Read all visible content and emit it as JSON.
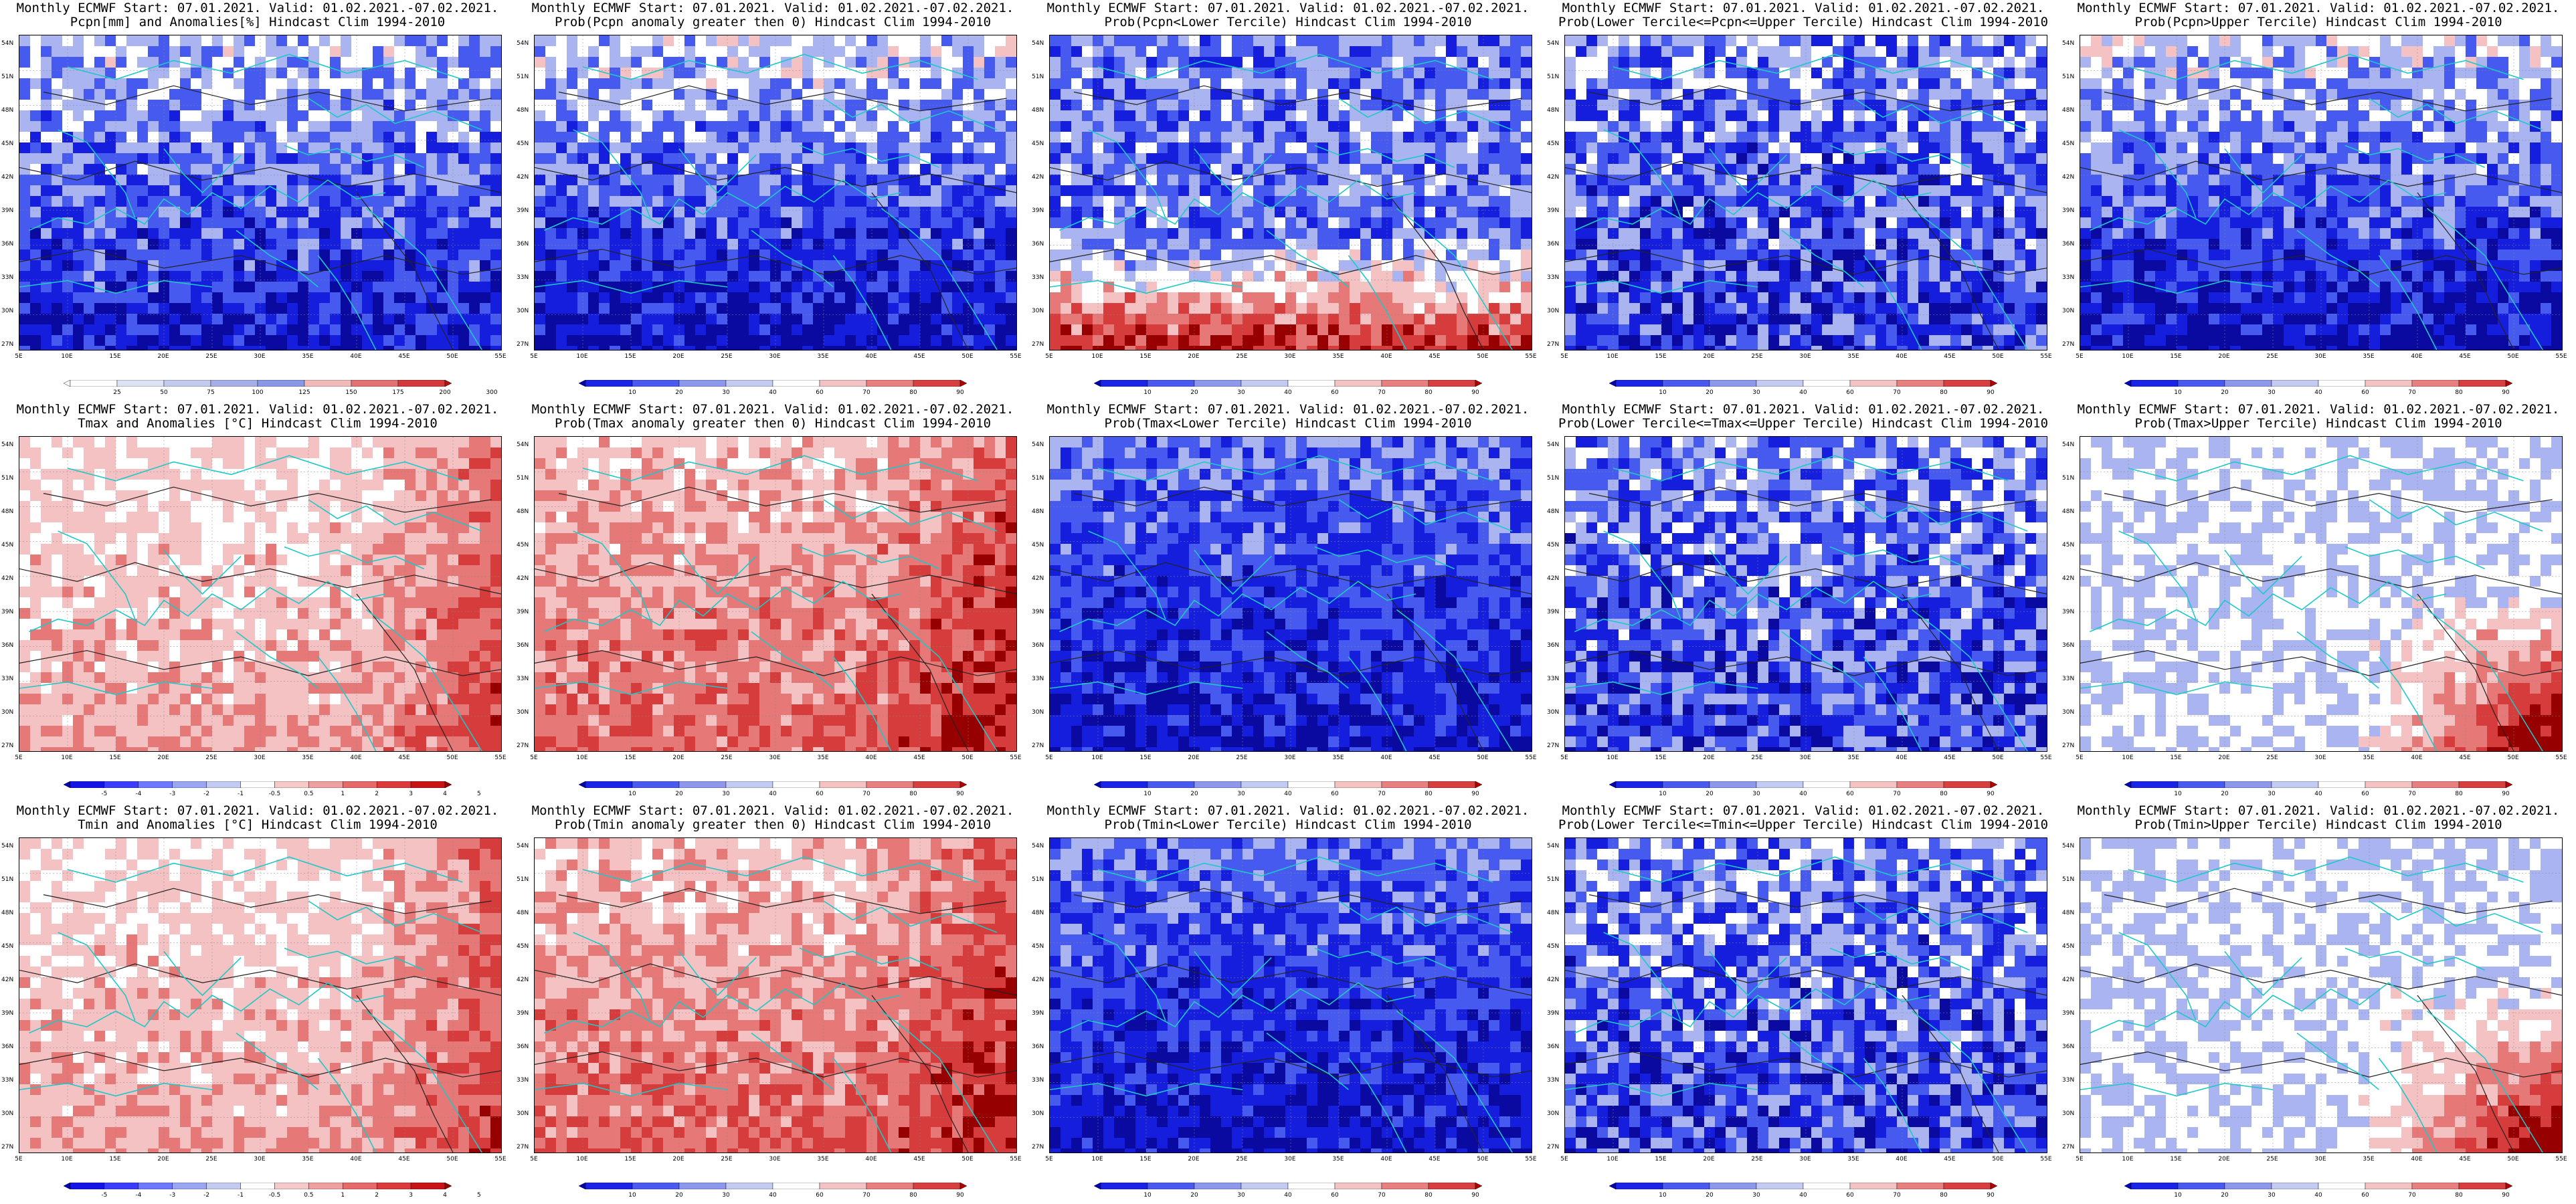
{
  "colorbars": {
    "anom_pcpn": {
      "labels": [
        "25",
        "50",
        "75",
        "100",
        "125",
        "150",
        "175",
        "200",
        "300"
      ],
      "colors": [
        "#f7f7f7",
        "#ffffff",
        "#dde2f5",
        "#c2cbee",
        "#a5b0ea",
        "#8a96e6",
        "#f2b9b9",
        "#e27272",
        "#d43a3a",
        "#b51212"
      ]
    },
    "anom_temp": {
      "labels": [
        "-5",
        "-4",
        "-3",
        "-2",
        "-1",
        "-0.5",
        "0.5",
        "1",
        "2",
        "3",
        "4",
        "5"
      ],
      "colors": [
        "#0000b4",
        "#1414e6",
        "#3c3cff",
        "#6b78ff",
        "#9aa6f4",
        "#c4cbf2",
        "#ffffff",
        "#f6c9c9",
        "#efa0a0",
        "#e66a6a",
        "#dc3a3a",
        "#c81414",
        "#960000"
      ]
    },
    "prob": {
      "labels": [
        "10",
        "20",
        "30",
        "40",
        "60",
        "70",
        "80",
        "90"
      ],
      "colors": [
        "#0000b4",
        "#1a24e6",
        "#4a5af0",
        "#8d98ec",
        "#c4cbf2",
        "#ffffff",
        "#f4c2c2",
        "#e88080",
        "#d84040",
        "#b00000"
      ]
    }
  },
  "panels": [
    {
      "line1": "Monthly ECMWF Start: 07.01.2021. Valid: 01.02.2021.-07.02.2021.",
      "line2": "Pcpn[mm] and Anomalies[%]",
      "line3": "Hindcast Clim 1994-2010",
      "cbar": "anom_pcpn",
      "scheme": "pcpn_anom"
    },
    {
      "line1": "Monthly ECMWF Start: 07.01.2021. Valid: 01.02.2021.-07.02.2021.",
      "line2": "Prob(Pcpn anomaly greater then 0)",
      "line3": "Hindcast Clim 1994-2010",
      "cbar": "prob",
      "scheme": "blue_south"
    },
    {
      "line1": "Monthly ECMWF Start: 07.01.2021. Valid: 01.02.2021.-07.02.2021.",
      "line2": "Prob(Pcpn<Lower Tercile)",
      "line3": "Hindcast Clim 1994-2010",
      "cbar": "prob",
      "scheme": "red_south"
    },
    {
      "line1": "Monthly ECMWF Start: 07.01.2021. Valid: 01.02.2021.-07.02.2021.",
      "line2": "Prob(Lower Tercile<=Pcpn<=Upper Tercile)",
      "line3": "Hindcast Clim 1994-2010",
      "cbar": "prob",
      "scheme": "blue_mixed"
    },
    {
      "line1": "Monthly ECMWF Start: 07.01.2021. Valid: 01.02.2021.-07.02.2021.",
      "line2": "Prob(Pcpn>Upper Tercile)",
      "line3": "Hindcast Clim 1994-2010",
      "cbar": "prob",
      "scheme": "blue_south"
    },
    {
      "line1": "Monthly ECMWF Start: 07.01.2021. Valid: 01.02.2021.-07.02.2021.",
      "line2": "Tmax and Anomalies [°C]",
      "line3": "Hindcast Clim 1994-2010",
      "cbar": "anom_temp",
      "scheme": "red_light"
    },
    {
      "line1": "Monthly ECMWF Start: 07.01.2021. Valid: 01.02.2021.-07.02.2021.",
      "line2": "Prob(Tmax anomaly greater then 0)",
      "line3": "Hindcast Clim 1994-2010",
      "cbar": "prob",
      "scheme": "red_strong"
    },
    {
      "line1": "Monthly ECMWF Start: 07.01.2021. Valid: 01.02.2021.-07.02.2021.",
      "line2": "Prob(Tmax<Lower Tercile)",
      "line3": "Hindcast Clim 1994-2010",
      "cbar": "prob",
      "scheme": "blue_strong"
    },
    {
      "line1": "Monthly ECMWF Start: 07.01.2021. Valid: 01.02.2021.-07.02.2021.",
      "line2": "Prob(Lower Tercile<=Tmax<=Upper Tercile)",
      "line3": "Hindcast Clim 1994-2010",
      "cbar": "prob",
      "scheme": "blue_mixed"
    },
    {
      "line1": "Monthly ECMWF Start: 07.01.2021. Valid: 01.02.2021.-07.02.2021.",
      "line2": "Prob(Tmax>Upper Tercile)",
      "line3": "Hindcast Clim 1994-2010",
      "cbar": "prob",
      "scheme": "white_red_se"
    },
    {
      "line1": "Monthly ECMWF Start: 07.01.2021. Valid: 01.02.2021.-07.02.2021.",
      "line2": "Tmin and Anomalies [°C]",
      "line3": "Hindcast Clim 1994-2010",
      "cbar": "anom_temp",
      "scheme": "red_light"
    },
    {
      "line1": "Monthly ECMWF Start: 07.01.2021. Valid: 01.02.2021.-07.02.2021.",
      "line2": "Prob(Tmin anomaly greater then 0)",
      "line3": "Hindcast Clim 1994-2010",
      "cbar": "prob",
      "scheme": "red_strong"
    },
    {
      "line1": "Monthly ECMWF Start: 07.01.2021. Valid: 01.02.2021.-07.02.2021.",
      "line2": "Prob(Tmin<Lower Tercile)",
      "line3": "Hindcast Clim 1994-2010",
      "cbar": "prob",
      "scheme": "blue_strong"
    },
    {
      "line1": "Monthly ECMWF Start: 07.01.2021. Valid: 01.02.2021.-07.02.2021.",
      "line2": "Prob(Lower Tercile<=Tmin<=Upper Tercile)",
      "line3": "Hindcast Clim 1994-2010",
      "cbar": "prob",
      "scheme": "blue_mixed"
    },
    {
      "line1": "Monthly ECMWF Start: 07.01.2021. Valid: 01.02.2021.-07.02.2021.",
      "line2": "Prob(Tmin>Upper Tercile)",
      "line3": "Hindcast Clim 1994-2010",
      "cbar": "prob",
      "scheme": "white_red_se"
    }
  ],
  "lat_labels": [
    "54N",
    "51N",
    "48N",
    "45N",
    "42N",
    "39N",
    "36N",
    "33N",
    "30N",
    "27N"
  ],
  "lon_labels": [
    "5E",
    "10E",
    "15E",
    "20E",
    "25E",
    "30E",
    "35E",
    "40E",
    "45E",
    "50E",
    "55E"
  ],
  "colors": {
    "coast": "#1fc8c8",
    "contour": "#222222",
    "blue_dark": "#0a0ab4",
    "blue_mid": "#4a5af0",
    "blue_light": "#b0b9ef",
    "red_dark": "#a00000",
    "red_mid": "#e04848",
    "red_light": "#f4c2c2"
  }
}
